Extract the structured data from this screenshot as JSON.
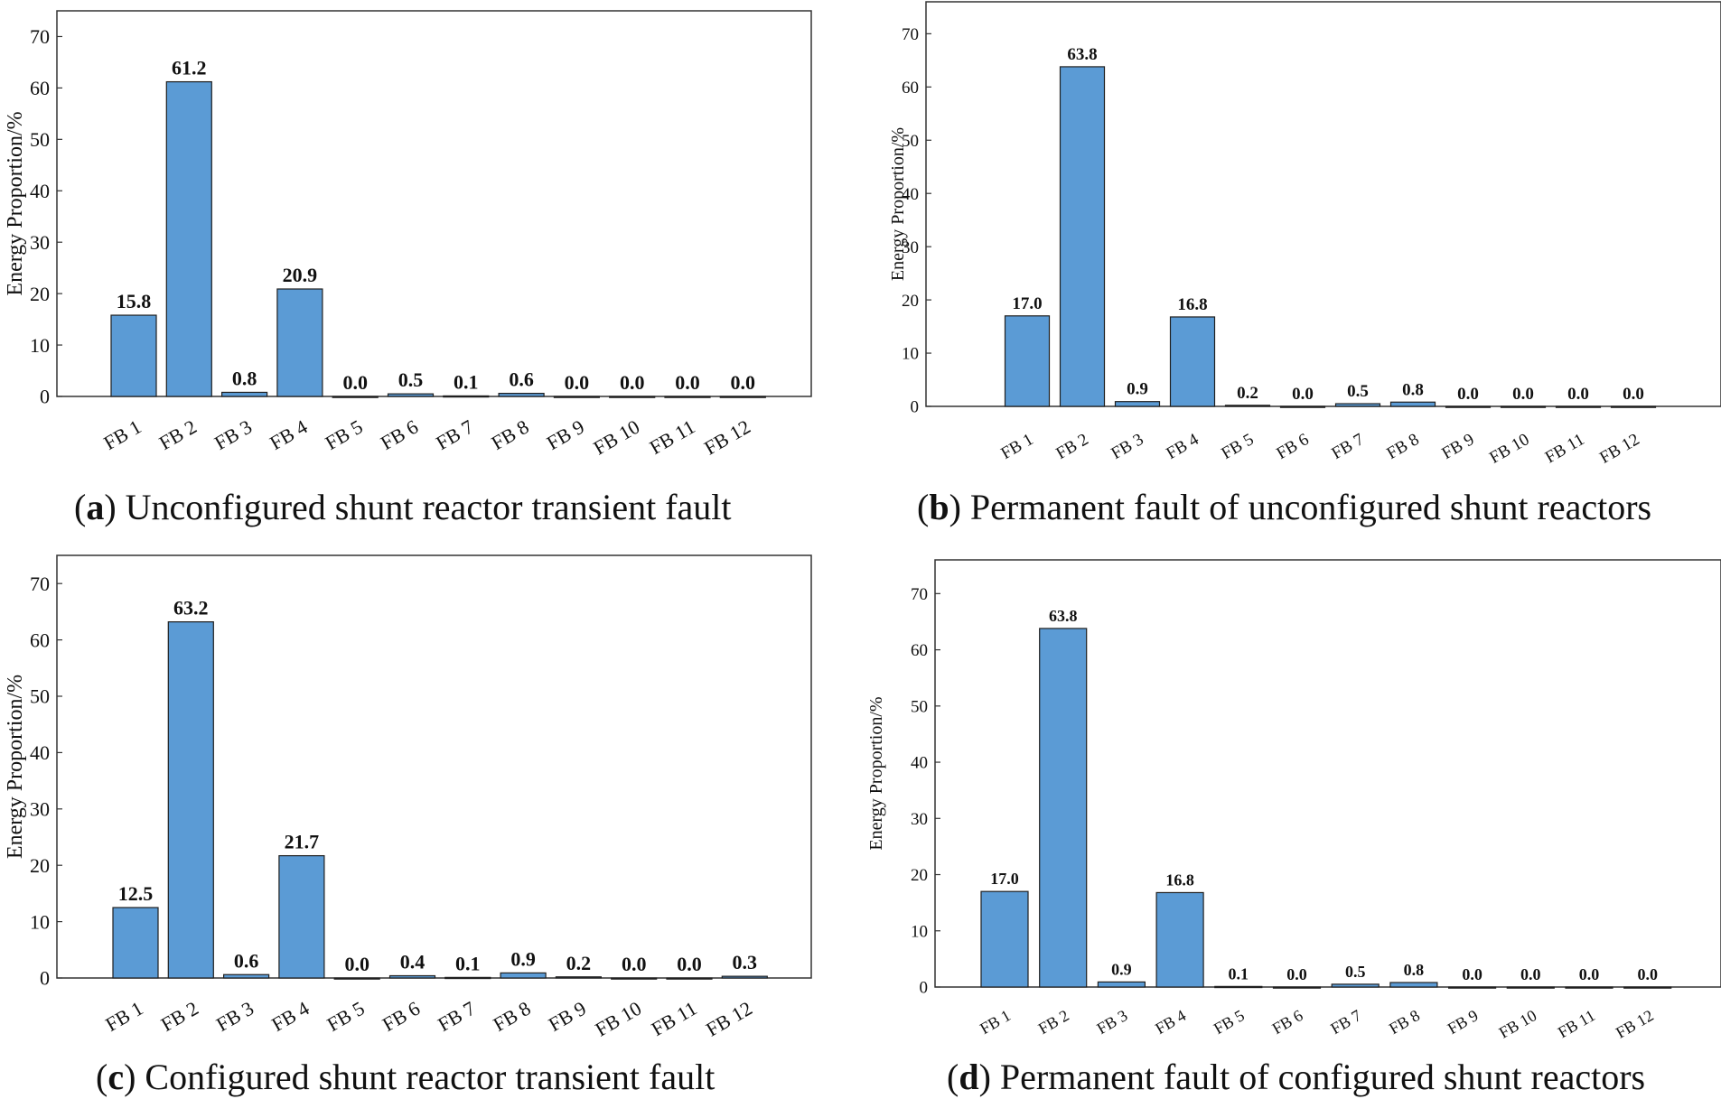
{
  "colors": {
    "bar_fill": "#5b9bd5",
    "bar_stroke": "#1f1f1f",
    "axis": "#333333",
    "text": "#111111"
  },
  "chart_data": [
    {
      "type": "bar",
      "panel": "a",
      "caption_letter": "a",
      "caption_text": "Unconfigured shunt reactor transient fault",
      "ylabel": "Energy Proportion/%",
      "ylim": [
        0,
        75
      ],
      "yticks": [
        0,
        10,
        20,
        30,
        40,
        50,
        60,
        70
      ],
      "categories": [
        "FB 1",
        "FB 2",
        "FB 3",
        "FB 4",
        "FB 5",
        "FB 6",
        "FB 7",
        "FB 8",
        "FB 9",
        "FB 10",
        "FB 11",
        "FB 12"
      ],
      "values": [
        15.8,
        61.2,
        0.8,
        20.9,
        0.0,
        0.5,
        0.1,
        0.6,
        0.0,
        0.0,
        0.0,
        0.0
      ],
      "labels": [
        "15.8",
        "61.2",
        "0.8",
        "20.9",
        "0.0",
        "0.5",
        "0.1",
        "0.6",
        "0.0",
        "0.0",
        "0.0",
        "0.0"
      ]
    },
    {
      "type": "bar",
      "panel": "b",
      "caption_letter": "b",
      "caption_text": "Permanent fault of unconfigured shunt reactors",
      "ylabel": "Energy Proportion/%",
      "ylim": [
        0,
        76
      ],
      "yticks": [
        0,
        10,
        20,
        30,
        40,
        50,
        60,
        70
      ],
      "categories": [
        "FB 1",
        "FB 2",
        "FB 3",
        "FB 4",
        "FB 5",
        "FB 6",
        "FB 7",
        "FB 8",
        "FB 9",
        "FB 10",
        "FB 11",
        "FB 12"
      ],
      "values": [
        17.0,
        63.8,
        0.9,
        16.8,
        0.2,
        0.0,
        0.5,
        0.8,
        0.0,
        0.0,
        0.0,
        0.0
      ],
      "labels": [
        "17.0",
        "63.8",
        "0.9",
        "16.8",
        "0.2",
        "0.0",
        "0.5",
        "0.8",
        "0.0",
        "0.0",
        "0.0",
        "0.0"
      ]
    },
    {
      "type": "bar",
      "panel": "c",
      "caption_letter": "c",
      "caption_text": "Configured shunt reactor transient fault",
      "ylabel": "Energy Proportion/%",
      "ylim": [
        0,
        75
      ],
      "yticks": [
        0,
        10,
        20,
        30,
        40,
        50,
        60,
        70
      ],
      "categories": [
        "FB 1",
        "FB 2",
        "FB 3",
        "FB 4",
        "FB 5",
        "FB 6",
        "FB 7",
        "FB 8",
        "FB 9",
        "FB 10",
        "FB 11",
        "FB 12"
      ],
      "values": [
        12.5,
        63.2,
        0.6,
        21.7,
        0.0,
        0.4,
        0.1,
        0.9,
        0.2,
        0.0,
        0.0,
        0.3
      ],
      "labels": [
        "12.5",
        "63.2",
        "0.6",
        "21.7",
        "0.0",
        "0.4",
        "0.1",
        "0.9",
        "0.2",
        "0.0",
        "0.0",
        "0.3"
      ]
    },
    {
      "type": "bar",
      "panel": "d",
      "caption_letter": "d",
      "caption_text": "Permanent fault of configured shunt reactors",
      "ylabel": "Energy Proportion/%",
      "ylim": [
        0,
        76
      ],
      "yticks": [
        0,
        10,
        20,
        30,
        40,
        50,
        60,
        70
      ],
      "categories": [
        "FB 1",
        "FB 2",
        "FB 3",
        "FB 4",
        "FB 5",
        "FB 6",
        "FB 7",
        "FB 8",
        "FB 9",
        "FB 10",
        "FB 11",
        "FB 12"
      ],
      "values": [
        17.0,
        63.8,
        0.9,
        16.8,
        0.1,
        0.0,
        0.5,
        0.8,
        0.0,
        0.0,
        0.0,
        0.0
      ],
      "labels": [
        "17.0",
        "63.8",
        "0.9",
        "16.8",
        "0.1",
        "0.0",
        "0.5",
        "0.8",
        "0.0",
        "0.0",
        "0.0",
        "0.0"
      ]
    }
  ]
}
